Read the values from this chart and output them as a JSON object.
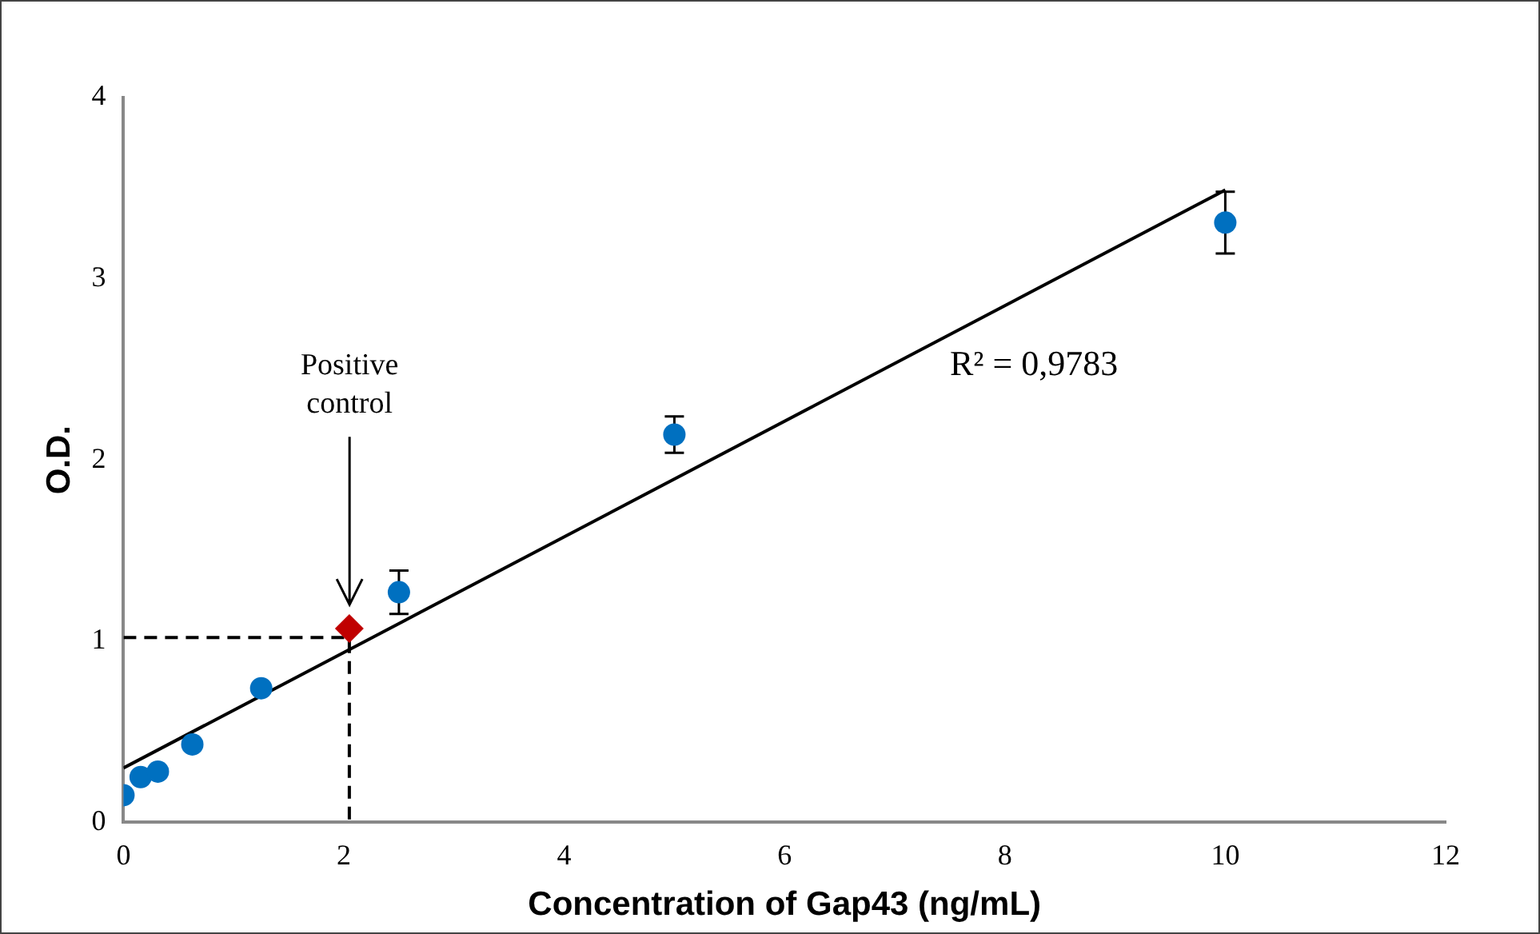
{
  "chart_data": {
    "type": "scatter",
    "xlabel": "Concentration of Gap43 (ng/mL)",
    "ylabel": "O.D.",
    "xlim": [
      0,
      12
    ],
    "xticks": [
      0,
      2,
      4,
      6,
      8,
      10,
      12
    ],
    "ylim": [
      0,
      4
    ],
    "yticks": [
      0,
      1,
      2,
      3,
      4
    ],
    "grid": false,
    "legend": false,
    "series": [
      {
        "marker": "circle",
        "color": "#0070c0",
        "x": [
          0,
          0.156,
          0.3125,
          0.625,
          1.25,
          2.5,
          5,
          10
        ],
        "values": [
          0.15,
          0.25,
          0.28,
          0.43,
          0.74,
          1.27,
          2.14,
          3.31
        ],
        "errors": [
          null,
          null,
          null,
          null,
          null,
          0.12,
          0.1,
          0.17
        ]
      },
      {
        "marker": "diamond",
        "color": "#c00000",
        "x": [
          2.05
        ],
        "values": [
          1.07
        ]
      },
      {
        "type": "line",
        "marker": "none",
        "line_style": "solid",
        "color": "#000000",
        "x": [
          0,
          10
        ],
        "values": [
          0.3,
          3.49
        ]
      },
      {
        "type": "line",
        "marker": "none",
        "line_style": "dashed",
        "color": "#000000",
        "x": [
          0,
          2.05,
          2.05
        ],
        "values": [
          1.02,
          1.02,
          0
        ]
      }
    ],
    "annotations": [
      "Positive control",
      "R² = 0,9783"
    ]
  }
}
